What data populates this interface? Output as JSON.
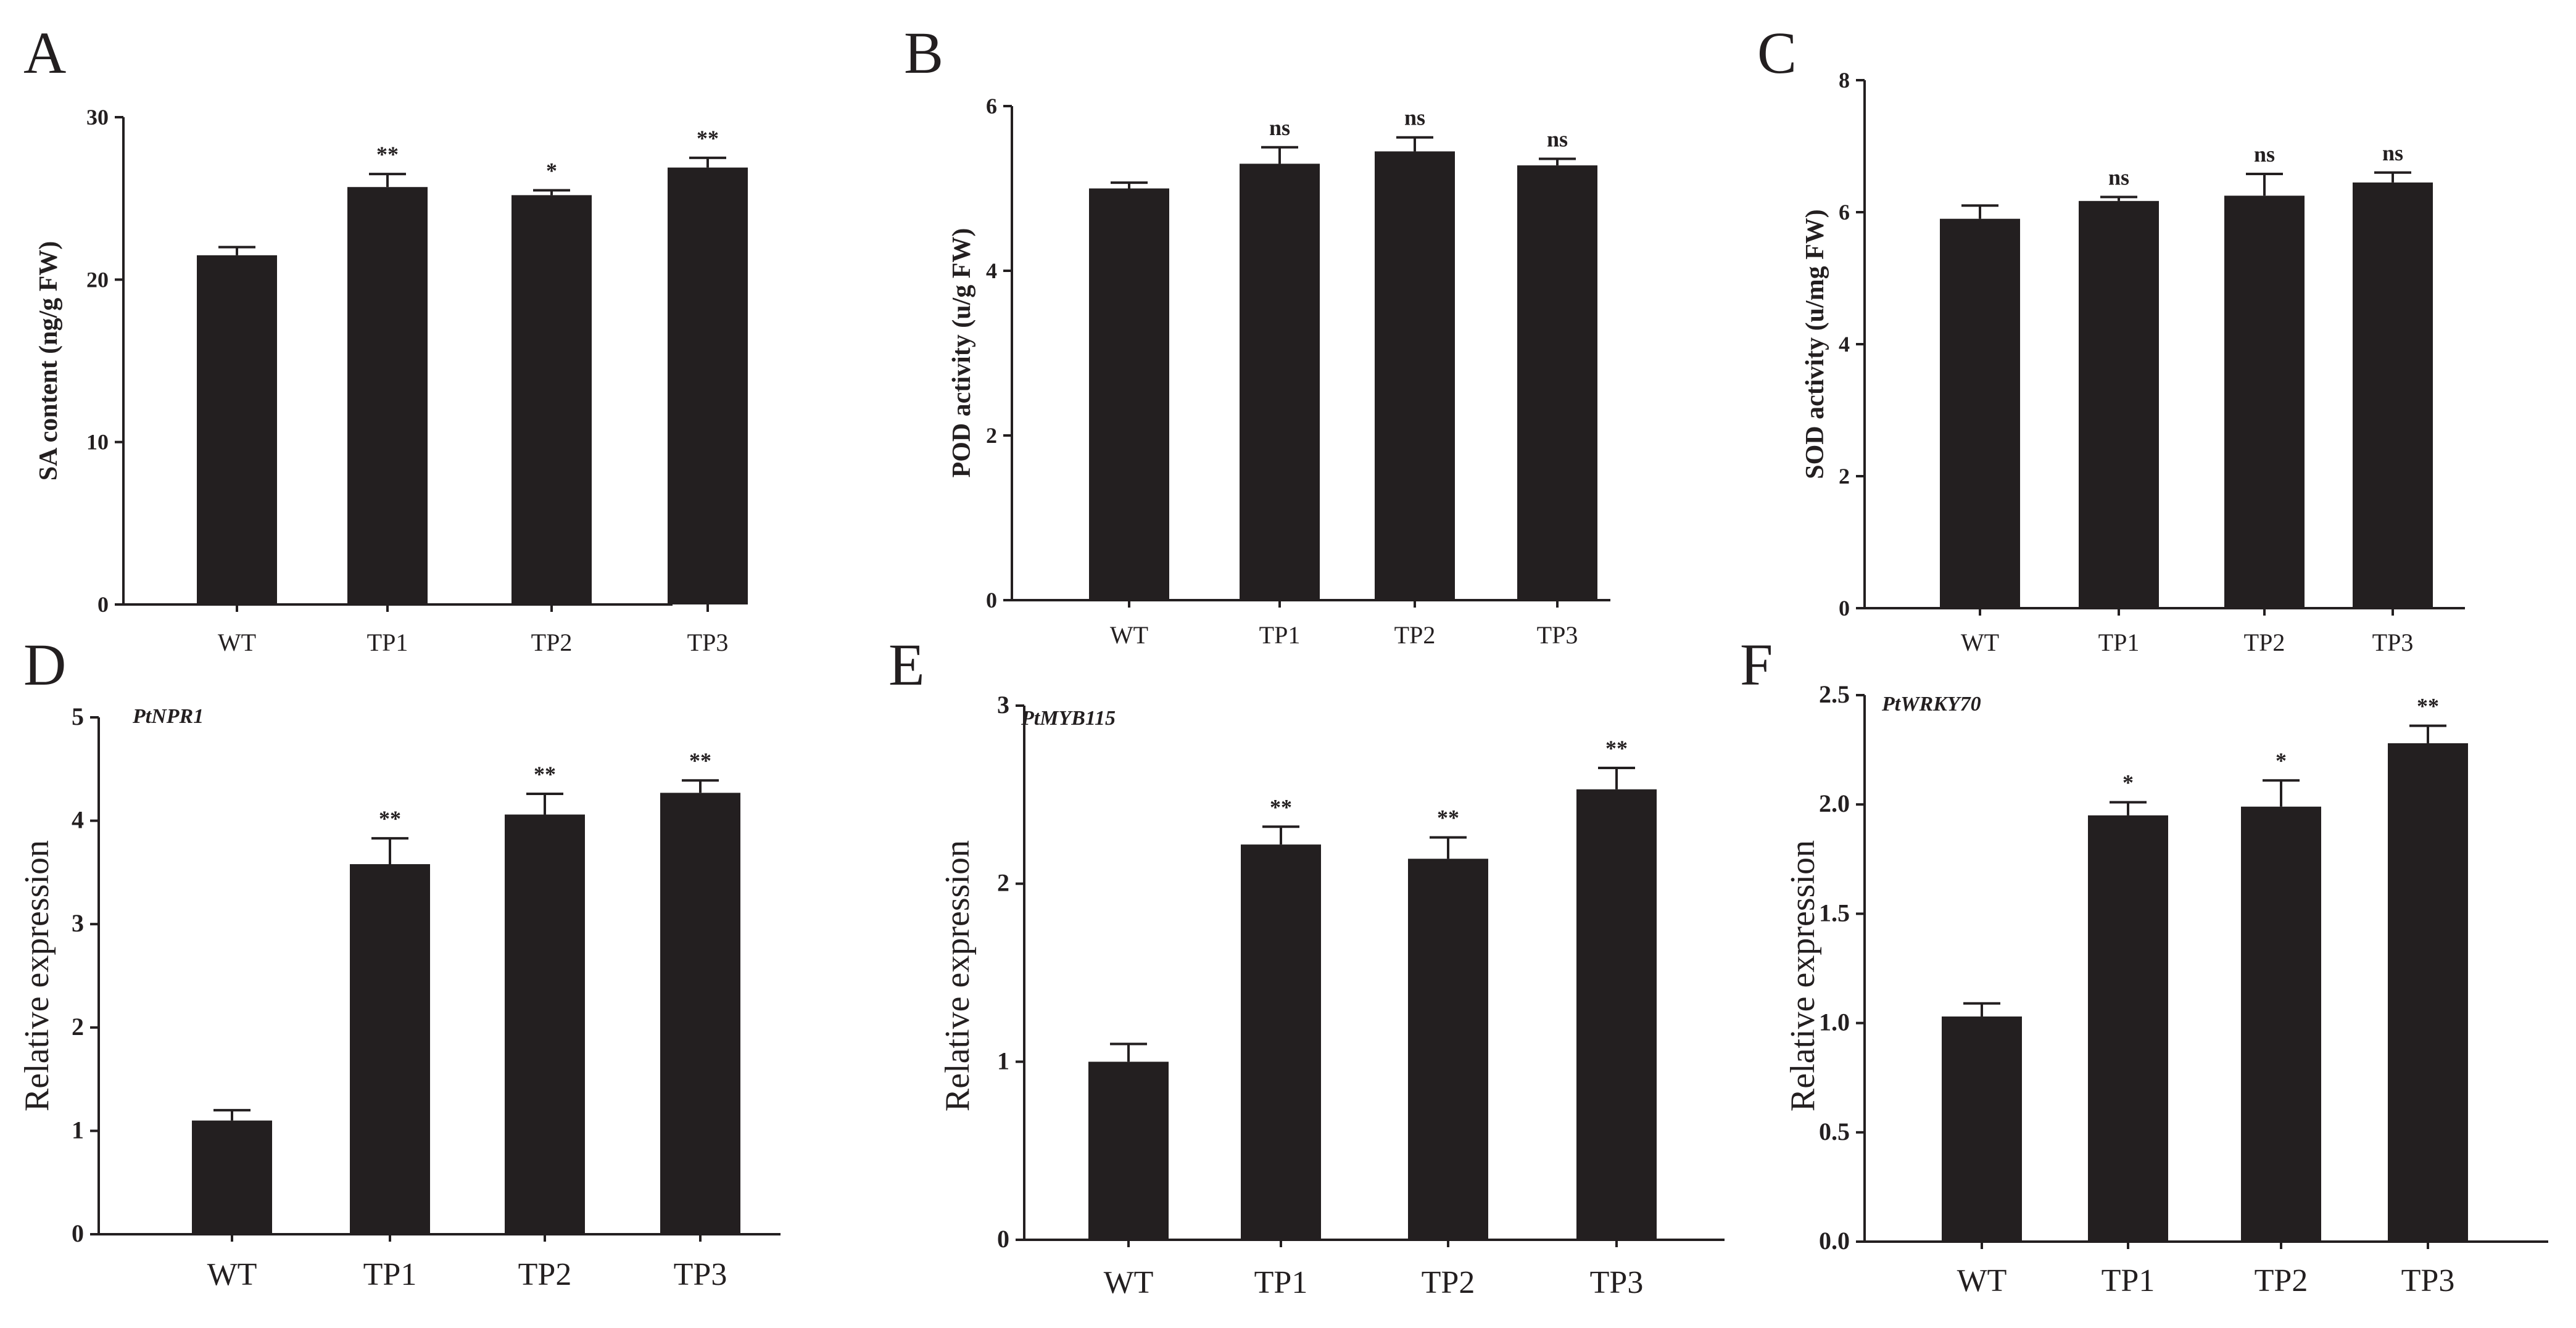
{
  "colors": {
    "bar": "#231f20",
    "axis": "#231f20",
    "background": "#ffffff"
  },
  "chart_data": [
    {
      "panel": "A",
      "type": "bar",
      "categories": [
        "WT",
        "TP1",
        "TP2",
        "TP3"
      ],
      "values": [
        21.5,
        25.7,
        25.2,
        26.9
      ],
      "errors": [
        0.5,
        0.8,
        0.3,
        0.6
      ],
      "significance": [
        "",
        "**",
        "*",
        "**"
      ],
      "ylabel": "SA content (ng/g FW)",
      "ylim": [
        0,
        30
      ],
      "yticks": [
        "0",
        "10",
        "20",
        "30"
      ],
      "annotation": ""
    },
    {
      "panel": "B",
      "type": "bar",
      "categories": [
        "WT",
        "TP1",
        "TP2",
        "TP3"
      ],
      "values": [
        5.0,
        5.3,
        5.45,
        5.28
      ],
      "errors": [
        0.07,
        0.2,
        0.17,
        0.08
      ],
      "significance": [
        "",
        "ns",
        "ns",
        "ns"
      ],
      "ylabel": "POD activity (u/g FW)",
      "ylim": [
        0,
        6
      ],
      "yticks": [
        "0",
        "2",
        "4",
        "6"
      ],
      "annotation": ""
    },
    {
      "panel": "C",
      "type": "bar",
      "categories": [
        "WT",
        "TP1",
        "TP2",
        "TP3"
      ],
      "values": [
        5.9,
        6.17,
        6.25,
        6.45
      ],
      "errors": [
        0.2,
        0.06,
        0.33,
        0.15
      ],
      "significance": [
        "",
        "ns",
        "ns",
        "ns"
      ],
      "ylabel": "SOD activity (u/mg FW)",
      "ylim": [
        0,
        8
      ],
      "yticks": [
        "0",
        "2",
        "4",
        "6",
        "8"
      ],
      "annotation": ""
    },
    {
      "panel": "D",
      "type": "bar",
      "categories": [
        "WT",
        "TP1",
        "TP2",
        "TP3"
      ],
      "values": [
        1.1,
        3.58,
        4.06,
        4.27
      ],
      "errors": [
        0.1,
        0.25,
        0.2,
        0.12
      ],
      "significance": [
        "",
        "**",
        "**",
        "**"
      ],
      "ylabel": "Relative expression",
      "ylim": [
        0,
        5
      ],
      "yticks": [
        "0",
        "1",
        "2",
        "3",
        "4",
        "5"
      ],
      "annotation": "PtNPR1"
    },
    {
      "panel": "E",
      "type": "bar",
      "categories": [
        "WT",
        "TP1",
        "TP2",
        "TP3"
      ],
      "values": [
        1.0,
        2.22,
        2.14,
        2.53
      ],
      "errors": [
        0.1,
        0.1,
        0.12,
        0.12
      ],
      "significance": [
        "",
        "**",
        "**",
        "**"
      ],
      "ylabel": "Relative expression",
      "ylim": [
        0,
        3
      ],
      "yticks": [
        "0",
        "1",
        "2",
        "3"
      ],
      "annotation": "PtMYB115"
    },
    {
      "panel": "F",
      "type": "bar",
      "categories": [
        "WT",
        "TP1",
        "TP2",
        "TP3"
      ],
      "values": [
        1.03,
        1.95,
        1.99,
        2.28
      ],
      "errors": [
        0.06,
        0.06,
        0.12,
        0.08
      ],
      "significance": [
        "",
        "*",
        "*",
        "**"
      ],
      "ylabel": "Relative expression",
      "ylim": [
        0,
        2.5
      ],
      "yticks": [
        "0.0",
        "0.5",
        "1.0",
        "1.5",
        "2.0",
        "2.5"
      ],
      "annotation": "PtWRKY70"
    }
  ]
}
